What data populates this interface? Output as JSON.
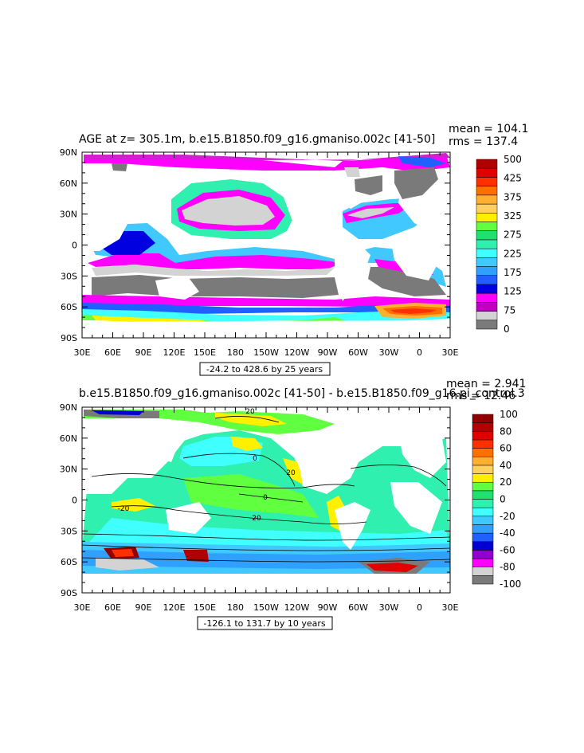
{
  "chart_data": [
    {
      "type": "heatmap",
      "title": "AGE at z= 305.1m, b.e15.B1850.f09_g16.gmaniso.002c [41-50]",
      "stats": {
        "mean": "mean = 104.1",
        "rms": "rms = 137.4"
      },
      "x_ticks": [
        "30E",
        "60E",
        "90E",
        "120E",
        "150E",
        "180",
        "150W",
        "120W",
        "90W",
        "60W",
        "30W",
        "0",
        "30E"
      ],
      "y_ticks": [
        "90N",
        "60N",
        "30N",
        "0",
        "30S",
        "60S",
        "90S"
      ],
      "xlim": [
        30,
        390
      ],
      "ylim": [
        -90,
        90
      ],
      "range_label": "-24.2 to 428.6 by 25 years",
      "colorbar": {
        "labels": [
          "500",
          "425",
          "375",
          "325",
          "275",
          "225",
          "175",
          "125",
          "75",
          "0"
        ],
        "colors": [
          "#7a7a7a",
          "#d3d3d3",
          "#c000c0",
          "#ff00ff",
          "#0000e0",
          "#2060ff",
          "#30a0ff",
          "#40c8ff",
          "#40ffff",
          "#30f0b0",
          "#20e070",
          "#60ff40",
          "#fff000",
          "#ffd060",
          "#ffb030",
          "#ff7000",
          "#ff3000",
          "#e00000",
          "#b00000"
        ]
      },
      "stats_values": {
        "mean": 104.1,
        "rms": 137.4
      }
    },
    {
      "type": "heatmap",
      "title": "b.e15.B1850.f09_g16.gmaniso.002c [41-50] - b.e15.B1850.f09_g16.pi_control.3",
      "stats": {
        "mean": "mean = 2.941",
        "rms": "rms = 12.46"
      },
      "x_ticks": [
        "30E",
        "60E",
        "90E",
        "120E",
        "150E",
        "180",
        "150W",
        "120W",
        "90W",
        "60W",
        "30W",
        "0",
        "30E"
      ],
      "y_ticks": [
        "90N",
        "60N",
        "30N",
        "0",
        "30S",
        "60S",
        "90S"
      ],
      "xlim": [
        30,
        390
      ],
      "ylim": [
        -90,
        90
      ],
      "range_label": "-126.1 to 131.7 by 10 years",
      "contour_labels": [
        "20",
        "0",
        "-20",
        "20",
        "0",
        "20"
      ],
      "colorbar": {
        "labels": [
          "100",
          "80",
          "60",
          "40",
          "20",
          "0",
          "-20",
          "-40",
          "-60",
          "-80",
          "-100"
        ],
        "colors": [
          "#7a7a7a",
          "#d3d3d3",
          "#ff00ff",
          "#9000d0",
          "#0000d0",
          "#2060ff",
          "#30a0ff",
          "#40c8ff",
          "#40ffff",
          "#30f0b0",
          "#20e070",
          "#60ff40",
          "#fff000",
          "#ffd060",
          "#ffb030",
          "#ff7000",
          "#ff3000",
          "#e00000",
          "#b00000",
          "#900000"
        ]
      },
      "stats_values": {
        "mean": 2.941,
        "rms": 12.46
      }
    }
  ]
}
